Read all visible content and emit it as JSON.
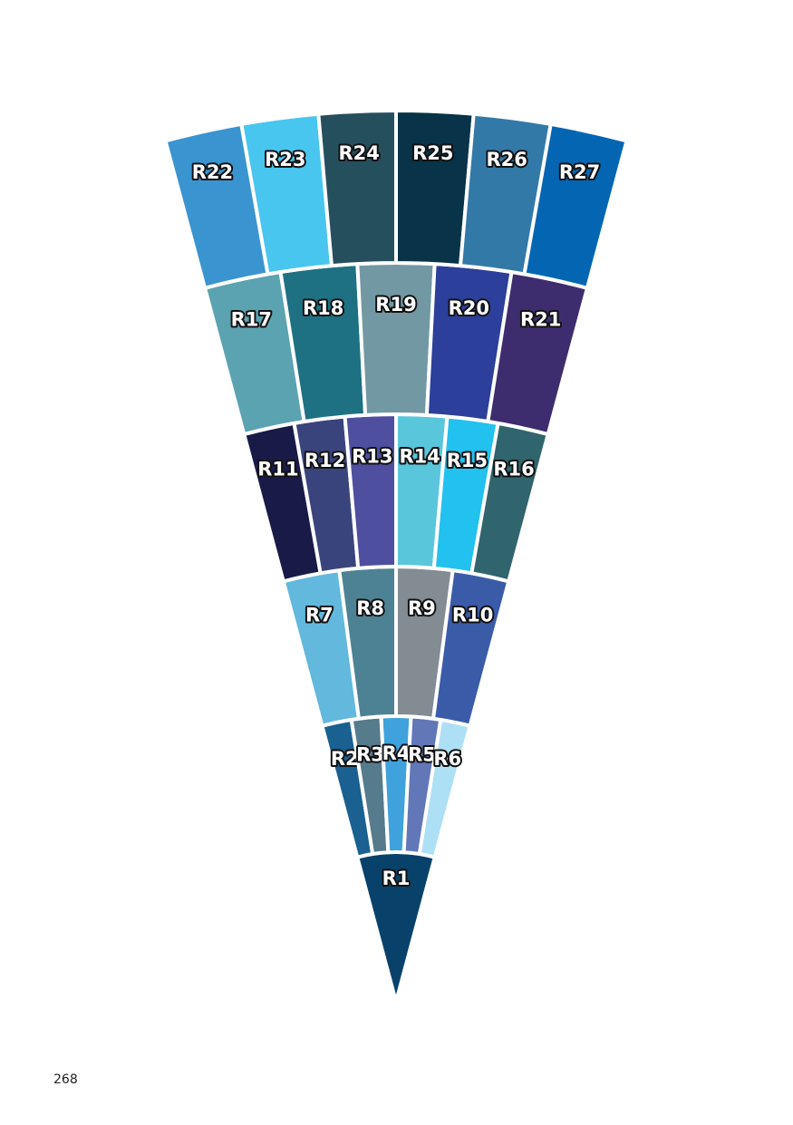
{
  "rings": [
    [
      {
        "label": "R1",
        "color": "#08426b"
      }
    ],
    [
      {
        "label": "R2",
        "color": "#1a6090"
      },
      {
        "label": "R3",
        "color": "#557b8c"
      },
      {
        "label": "R4",
        "color": "#3fa2dc"
      },
      {
        "label": "R5",
        "color": "#6177b8"
      },
      {
        "label": "R6",
        "color": "#aee0f5"
      }
    ],
    [
      {
        "label": "R7",
        "color": "#62b8dd"
      },
      {
        "label": "R8",
        "color": "#4d8294"
      },
      {
        "label": "R9",
        "color": "#838b93"
      },
      {
        "label": "R10",
        "color": "#3a5ba8"
      }
    ],
    [
      {
        "label": "R11",
        "color": "#1a1a48"
      },
      {
        "label": "R12",
        "color": "#3a447c"
      },
      {
        "label": "R13",
        "color": "#4f4fa0"
      },
      {
        "label": "R14",
        "color": "#5ac6dc"
      },
      {
        "label": "R15",
        "color": "#22c1ef"
      },
      {
        "label": "R16",
        "color": "#30656d"
      }
    ],
    [
      {
        "label": "R17",
        "color": "#5ca3b1"
      },
      {
        "label": "R18",
        "color": "#1e7182"
      },
      {
        "label": "R19",
        "color": "#7299a3"
      },
      {
        "label": "R20",
        "color": "#2b3f9b"
      },
      {
        "label": "R21",
        "color": "#3e2d6e"
      }
    ],
    [
      {
        "label": "R22",
        "color": "#3a94d0"
      },
      {
        "label": "R23",
        "color": "#48c6ef"
      },
      {
        "label": "R24",
        "color": "#264f5e"
      },
      {
        "label": "R25",
        "color": "#083348"
      },
      {
        "label": "R26",
        "color": "#3279a8"
      },
      {
        "label": "R27",
        "color": "#0466b2"
      }
    ]
  ],
  "page_number": "268"
}
